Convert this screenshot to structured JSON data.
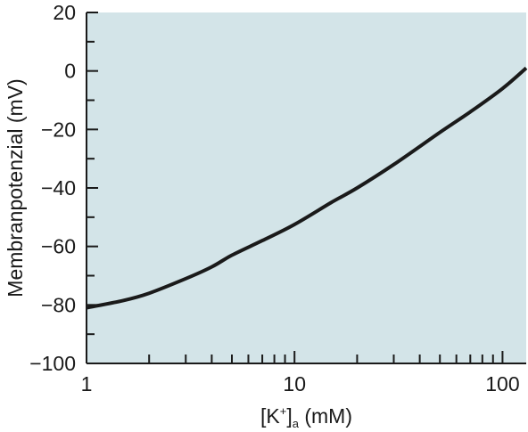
{
  "chart_data": {
    "type": "line",
    "xlabel": "[K+]a (mM)",
    "xlabel_parts": {
      "open": "[K",
      "sup": "+",
      "close": "]",
      "sub": "a",
      "unit": " (mM)"
    },
    "ylabel": "Membranpotenzial (mV)",
    "x_scale": "log",
    "xlim": [
      1,
      130
    ],
    "ylim": [
      -100,
      20
    ],
    "x_ticks": [
      1,
      10,
      100
    ],
    "x_tick_labels": [
      "1",
      "10",
      "100"
    ],
    "y_ticks": [
      20,
      0,
      -20,
      -40,
      -60,
      -80,
      -100
    ],
    "y_tick_labels": [
      "20",
      "0",
      "−20",
      "−40",
      "−60",
      "−80",
      "−100"
    ],
    "grid": false,
    "legend": "none",
    "colors": {
      "plot_background": "#d3e4e8",
      "line": "#1a1a1a",
      "axis": "#1a1a1a"
    },
    "series": [
      {
        "x": [
          1,
          1.5,
          2,
          3,
          4,
          5,
          7,
          10,
          15,
          20,
          30,
          50,
          70,
          100,
          130
        ],
        "y": [
          -81,
          -78.5,
          -76,
          -71,
          -67,
          -63,
          -58,
          -52.5,
          -45,
          -40,
          -32,
          -21,
          -14,
          -6,
          1
        ]
      }
    ]
  }
}
